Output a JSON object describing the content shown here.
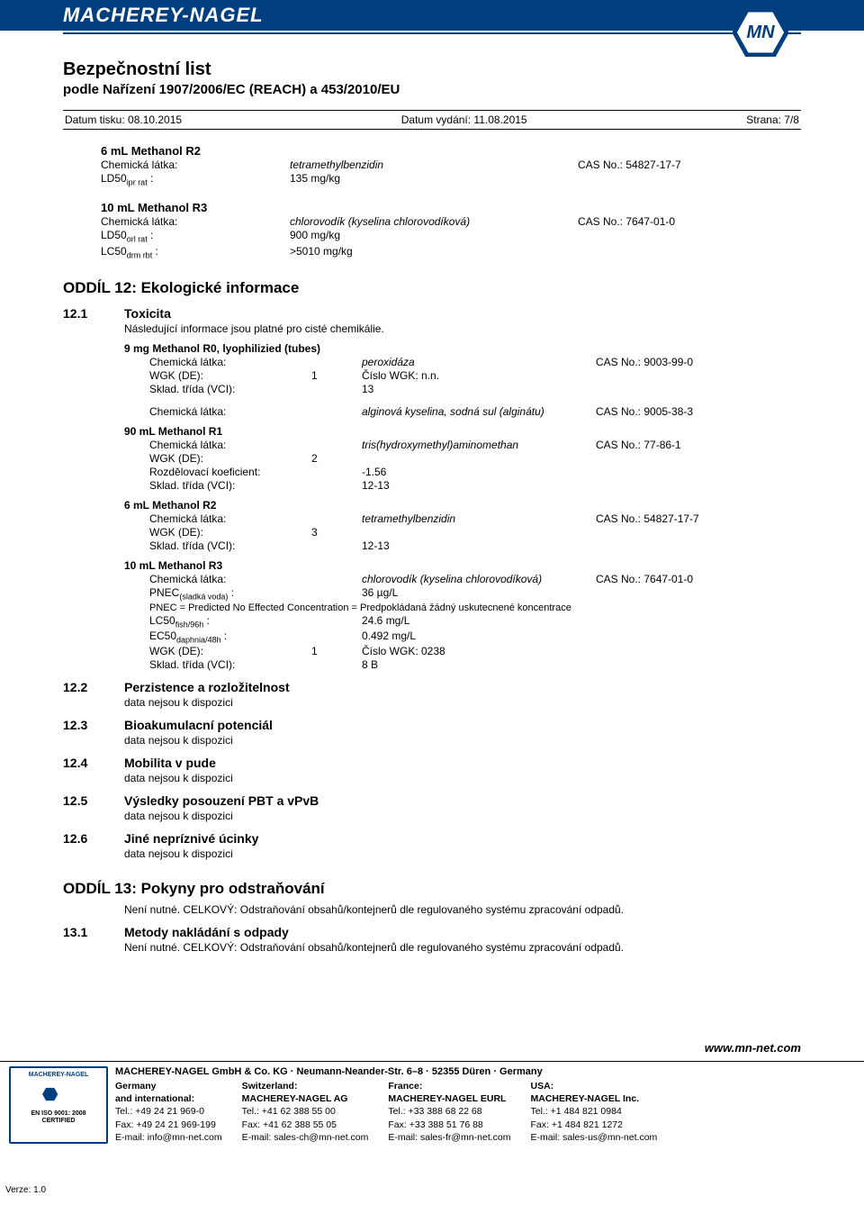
{
  "brand": "MACHEREY-NAGEL",
  "logo_text": "MN",
  "colors": {
    "brand": "#003e7e",
    "text": "#000000",
    "bg": "#ffffff"
  },
  "doc_title": "Bezpečnostní list",
  "doc_subtitle": "podle Nařízení 1907/2006/EC (REACH) a 453/2010/EU",
  "meta": {
    "print_date_label": "Datum tisku: 08.10.2015",
    "issue_date_label": "Datum vydání: 11.08.2015",
    "page_label": "Strana: 7/8"
  },
  "top_blocks": [
    {
      "title": "6 mL Methanol R2",
      "rows": [
        {
          "label": "Chemická látka:",
          "value": "tetramethylbenzidin",
          "italic": true,
          "cas": "CAS No.: 54827-17-7"
        },
        {
          "label_html": "LD50<sub>ipr rat</sub> :",
          "value": "135 mg/kg"
        }
      ]
    },
    {
      "title": "10 mL Methanol R3",
      "rows": [
        {
          "label": "Chemická látka:",
          "value": "chlorovodík (kyselina chlorovodíková)",
          "italic": true,
          "cas": "CAS No.: 7647-01-0"
        },
        {
          "label_html": "LD50<sub>orl rat</sub> :",
          "value": "900 mg/kg"
        },
        {
          "label_html": "LC50<sub>drm rbt</sub> :",
          "value": ">5010 mg/kg"
        }
      ]
    }
  ],
  "section12": {
    "heading": "ODDÍL 12: Ekologické informace",
    "s1": {
      "num": "12.1",
      "title": "Toxicita",
      "intro": "Následující informace jsou platné pro cisté chemikálie.",
      "blocks": [
        {
          "title": "9 mg Methanol R0, lyophilizied (tubes)",
          "rows": [
            {
              "a": "Chemická látka:",
              "b": "",
              "c": "peroxidáza",
              "c_italic": true,
              "d": "CAS No.: 9003-99-0"
            },
            {
              "a": "WGK (DE):",
              "b": "1",
              "c": "Číslo WGK: n.n."
            },
            {
              "a": "Sklad. třída (VCI):",
              "b": "",
              "c": "13"
            }
          ],
          "extra_row": {
            "a": "Chemická látka:",
            "c": "alginová kyselina, sodná sul (alginátu)",
            "c_italic": true,
            "d": "CAS No.: 9005-38-3"
          }
        },
        {
          "title": "90 mL Methanol R1",
          "rows": [
            {
              "a": "Chemická látka:",
              "b": "",
              "c": "tris(hydroxymethyl)aminomethan",
              "c_italic": true,
              "d": "CAS No.: 77-86-1"
            },
            {
              "a": "WGK (DE):",
              "b": "2",
              "c": ""
            },
            {
              "a": "Rozdělovací koeficient:",
              "b": "",
              "c": "-1.56"
            },
            {
              "a": "Sklad. třída (VCI):",
              "b": "",
              "c": "12-13"
            }
          ]
        },
        {
          "title": "6 mL Methanol R2",
          "rows": [
            {
              "a": "Chemická látka:",
              "b": "",
              "c": "tetramethylbenzidin",
              "c_italic": true,
              "d": "CAS No.: 54827-17-7"
            },
            {
              "a": "WGK (DE):",
              "b": "3",
              "c": ""
            },
            {
              "a": "Sklad. třída (VCI):",
              "b": "",
              "c": "12-13"
            }
          ]
        },
        {
          "title": "10 mL Methanol R3",
          "rows": [
            {
              "a": "Chemická látka:",
              "b": "",
              "c": "chlorovodík (kyselina chlorovodíková)",
              "c_italic": true,
              "d": "CAS No.: 7647-01-0"
            },
            {
              "a_html": "PNEC<sub>(sladká voda)</sub> :",
              "b": "",
              "c": "36 µg/L"
            }
          ],
          "note": "PNEC = Predicted No Effected Concentration = Predpokládaná žádný uskutecnené koncentrace",
          "rows2": [
            {
              "a_html": "LC50<sub>fish/96h</sub> :",
              "b": "",
              "c": "24.6 mg/L"
            },
            {
              "a_html": "EC50<sub>daphnia/48h</sub> :",
              "b": "",
              "c": "0.492 mg/L"
            },
            {
              "a": "WGK (DE):",
              "b": "1",
              "c": "Číslo WGK: 0238"
            },
            {
              "a": "Sklad. třída (VCI):",
              "b": "",
              "c": "8 B"
            }
          ]
        }
      ]
    },
    "simple": [
      {
        "num": "12.2",
        "title": "Perzistence a rozložitelnost",
        "text": "data nejsou k dispozici"
      },
      {
        "num": "12.3",
        "title": "Bioakumulacní potenciál",
        "text": "data nejsou k dispozici"
      },
      {
        "num": "12.4",
        "title": "Mobilita v pude",
        "text": "data nejsou k dispozici"
      },
      {
        "num": "12.5",
        "title": "Výsledky posouzení PBT a vPvB",
        "text": "data nejsou k dispozici"
      },
      {
        "num": "12.6",
        "title": "Jiné nepríznivé úcinky",
        "text": "data nejsou k dispozici"
      }
    ]
  },
  "section13": {
    "heading": "ODDÍL 13: Pokyny pro odstraňování",
    "intro": "Není nutné. CELKOVÝ: Odstraňování obsahů/kontejnerů dle regulovaného systému zpracování odpadů.",
    "s1": {
      "num": "13.1",
      "title": "Metody nakládání s odpady",
      "text": "Není nutné. CELKOVÝ: Odstraňování obsahů/kontejnerů dle regulovaného systému zpracování odpadů."
    }
  },
  "footer": {
    "url": "www.mn-net.com",
    "company_line": "MACHEREY-NAGEL GmbH & Co. KG · Neumann-Neander-Str. 6–8 · 52355 Düren · Germany",
    "cert": {
      "top": "MACHEREY-NAGEL",
      "iso1": "EN ISO 9001: 2008",
      "iso2": "CERTIFIED"
    },
    "cols": [
      {
        "title": "Germany",
        "sub": "and international:",
        "tel": "Tel.:    +49 24 21 969-0",
        "fax": "Fax:    +49 24 21 969-199",
        "email": "E-mail: info@mn-net.com"
      },
      {
        "title": "Switzerland:",
        "sub": "MACHEREY-NAGEL AG",
        "tel": "Tel.:    +41 62 388 55 00",
        "fax": "Fax:    +41 62 388 55 05",
        "email": "E-mail: sales-ch@mn-net.com"
      },
      {
        "title": "France:",
        "sub": "MACHEREY-NAGEL EURL",
        "tel": "Tel.:    +33 388 68 22 68",
        "fax": "Fax:    +33 388 51 76 88",
        "email": "E-mail: sales-fr@mn-net.com"
      },
      {
        "title": "USA:",
        "sub": "MACHEREY-NAGEL Inc.",
        "tel": "Tel.:    +1 484 821 0984",
        "fax": "Fax:    +1 484 821 1272",
        "email": "E-mail: sales-us@mn-net.com"
      }
    ],
    "version": "Verze: 1.0"
  }
}
